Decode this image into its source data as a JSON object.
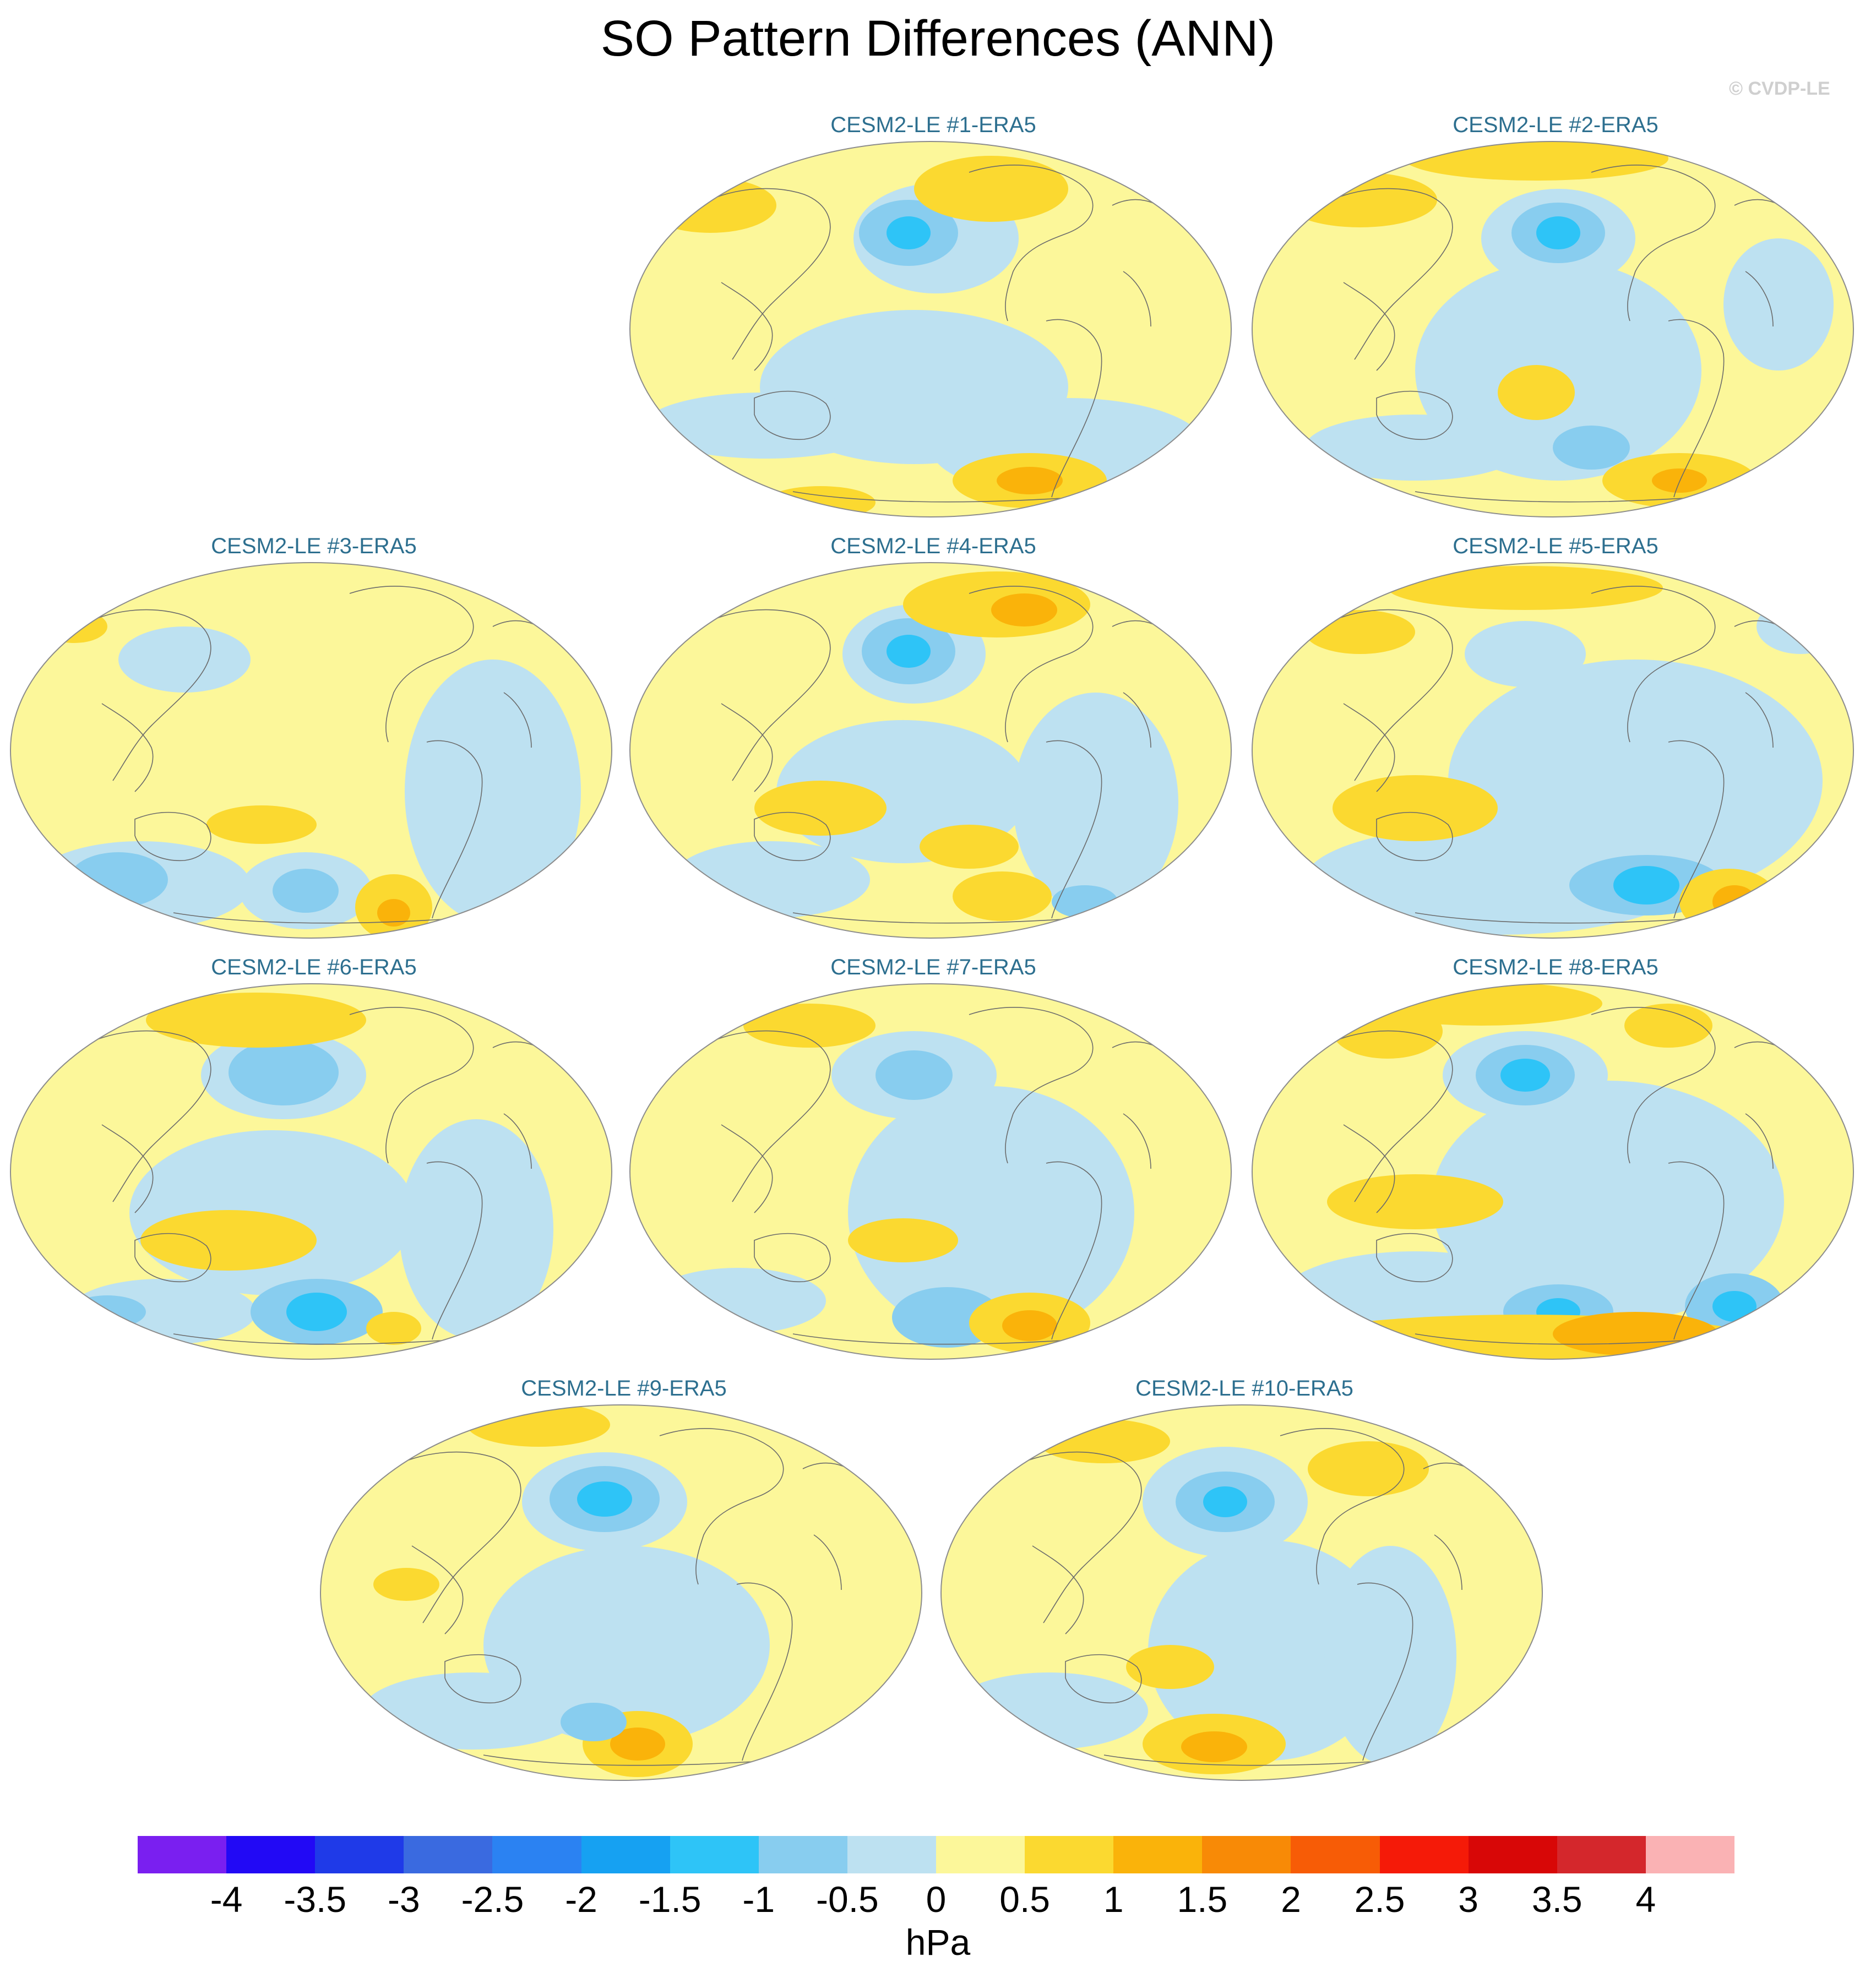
{
  "title": "SO Pattern Differences (ANN)",
  "credit": "© CVDP-LE",
  "unit": "hPa",
  "colorbar": {
    "levels": [
      -4,
      -3.5,
      -3,
      -2.5,
      -2,
      -1.5,
      -1,
      -0.5,
      0,
      0.5,
      1,
      1.5,
      2,
      2.5,
      3,
      3.5,
      4
    ],
    "tick_labels": [
      "-4",
      "-3.5",
      "-3",
      "-2.5",
      "-2",
      "-1.5",
      "-1",
      "-0.5",
      "0",
      "0.5",
      "1",
      "1.5",
      "2",
      "2.5",
      "3",
      "3.5",
      "4"
    ],
    "colors": [
      "#7a1ff0",
      "#2209f5",
      "#1f3ae8",
      "#3a6ae0",
      "#2b82f2",
      "#16a1f2",
      "#2ec4f7",
      "#88cdef",
      "#bde1f1",
      "#fcf79a",
      "#fbd930",
      "#fab30a",
      "#f88a06",
      "#f75c06",
      "#f51a08",
      "#d80707",
      "#d4272c",
      "#fab2b4"
    ]
  },
  "panels": [
    {
      "title": "CESM2-LE #1-ERA5"
    },
    {
      "title": "CESM2-LE #2-ERA5"
    },
    {
      "title": "CESM2-LE #3-ERA5"
    },
    {
      "title": "CESM2-LE #4-ERA5"
    },
    {
      "title": "CESM2-LE #5-ERA5"
    },
    {
      "title": "CESM2-LE #6-ERA5"
    },
    {
      "title": "CESM2-LE #7-ERA5"
    },
    {
      "title": "CESM2-LE #8-ERA5"
    },
    {
      "title": "CESM2-LE #9-ERA5"
    },
    {
      "title": "CESM2-LE #10-ERA5"
    }
  ]
}
